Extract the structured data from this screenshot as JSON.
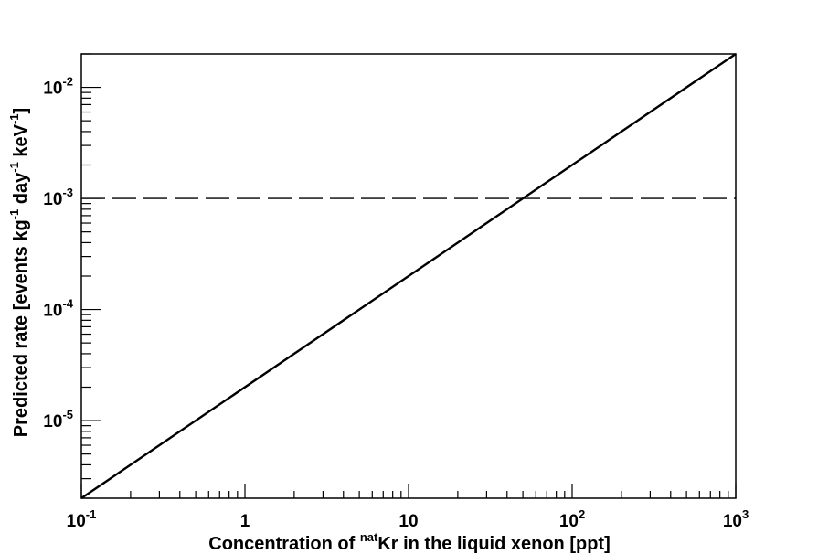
{
  "chart_data": {
    "type": "line",
    "x_scale": "log",
    "y_scale": "log",
    "xlim": [
      0.1,
      1000
    ],
    "ylim": [
      2e-06,
      0.02
    ],
    "xlabel": {
      "prefix": "Concentration of ",
      "superscript": "nat",
      "suffix": "Kr in the liquid xenon [ppt]"
    },
    "ylabel": {
      "part1": "Predicted rate [events kg",
      "sup1": "-1",
      "part2": " day",
      "sup2": "-1",
      "part3": " keV",
      "sup3": "-1",
      "part4": "]"
    },
    "x_ticks": [
      {
        "value": 0.1,
        "base": "10",
        "exp": "-1"
      },
      {
        "value": 1,
        "base": "1",
        "exp": ""
      },
      {
        "value": 10,
        "base": "10",
        "exp": ""
      },
      {
        "value": 100,
        "base": "10",
        "exp": "2"
      },
      {
        "value": 1000,
        "base": "10",
        "exp": "3"
      }
    ],
    "y_ticks": [
      {
        "value": 1e-05,
        "base": "10",
        "exp": "-5"
      },
      {
        "value": 0.0001,
        "base": "10",
        "exp": "-4"
      },
      {
        "value": 0.001,
        "base": "10",
        "exp": "-3"
      },
      {
        "value": 0.01,
        "base": "10",
        "exp": "-2"
      }
    ],
    "series": [
      {
        "style": "solid",
        "color": "#000000",
        "x": [
          0.1,
          1000
        ],
        "y": [
          2e-06,
          0.02
        ]
      }
    ],
    "reference_lines": [
      {
        "orientation": "horizontal",
        "y": 0.001,
        "style": "dashed",
        "color": "#000000"
      }
    ],
    "grid": false
  }
}
